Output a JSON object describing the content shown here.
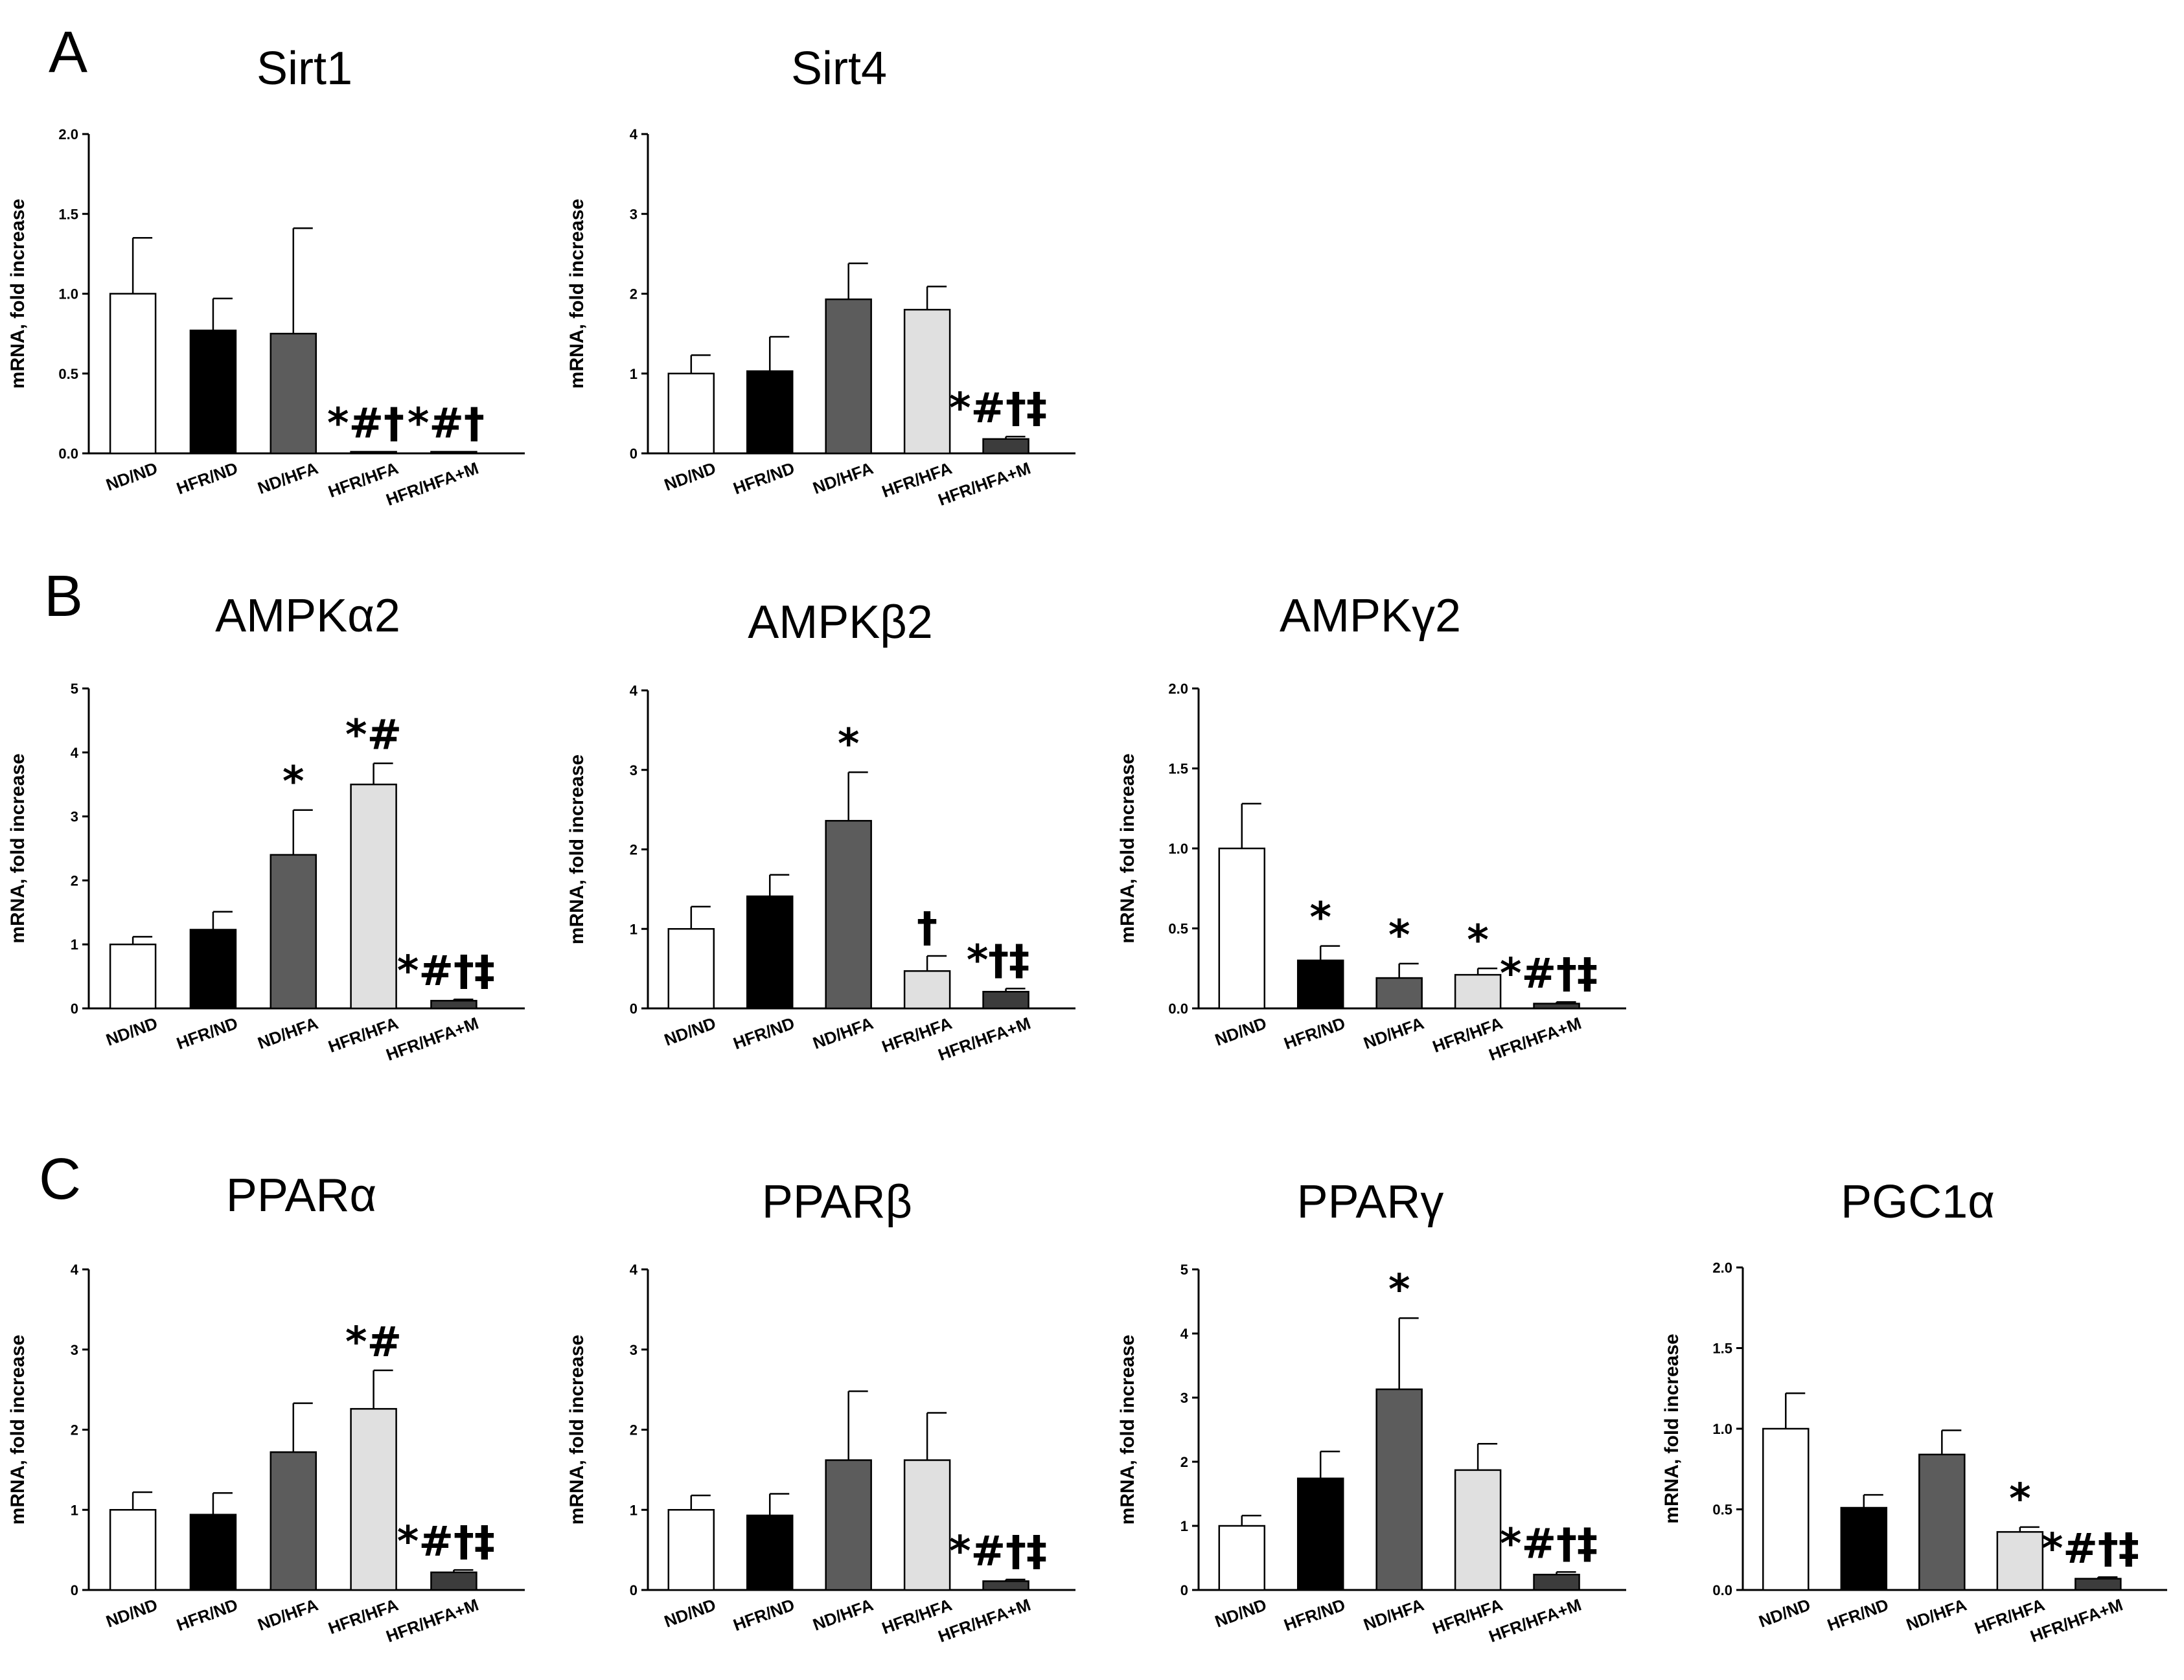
{
  "panel_labels": {
    "a": "A",
    "b": "B",
    "c": "C"
  },
  "colors": {
    "ND/ND": "#ffffff",
    "HFR/ND": "#000000",
    "ND/HFA": "#5c5c5c",
    "HFR/HFA": "#e0e0e0",
    "HFR/HFA+M": "#3c3c3c"
  },
  "chart_data": [
    {
      "id": "sirt1",
      "panel": "A",
      "type": "bar",
      "title": "Sirt1",
      "ylabel": "mRNA, fold increase",
      "categories": [
        "ND/ND",
        "HFR/ND",
        "ND/HFA",
        "HFR/HFA",
        "HFR/HFA+M"
      ],
      "values": [
        1.0,
        0.77,
        0.75,
        0.01,
        0.01
      ],
      "errors": [
        0.35,
        0.2,
        0.66,
        0.0,
        0.0
      ],
      "ylim": [
        0,
        2.0
      ],
      "yticks": [
        "0.0",
        "0.5",
        "1.0",
        "1.5",
        "2.0"
      ],
      "annotations": [
        null,
        null,
        null,
        "*#†",
        "*#†"
      ]
    },
    {
      "id": "sirt4",
      "panel": "A",
      "type": "bar",
      "title": "Sirt4",
      "ylabel": "mRNA, fold increase",
      "categories": [
        "ND/ND",
        "HFR/ND",
        "ND/HFA",
        "HFR/HFA",
        "HFR/HFA+M"
      ],
      "values": [
        1.0,
        1.03,
        1.93,
        1.8,
        0.18
      ],
      "errors": [
        0.23,
        0.43,
        0.45,
        0.29,
        0.03
      ],
      "ylim": [
        0,
        4
      ],
      "yticks": [
        "0",
        "1",
        "2",
        "3",
        "4"
      ],
      "annotations": [
        null,
        null,
        null,
        null,
        "*#†‡"
      ]
    },
    {
      "id": "ampka2",
      "panel": "B",
      "type": "bar",
      "title": "AMPKα2",
      "ylabel": "mRNA, fold increase",
      "categories": [
        "ND/ND",
        "HFR/ND",
        "ND/HFA",
        "HFR/HFA",
        "HFR/HFA+M"
      ],
      "values": [
        1.0,
        1.23,
        2.4,
        3.5,
        0.12
      ],
      "errors": [
        0.12,
        0.28,
        0.7,
        0.33,
        0.02
      ],
      "ylim": [
        0,
        5
      ],
      "yticks": [
        "0",
        "1",
        "2",
        "3",
        "4",
        "5"
      ],
      "annotations": [
        null,
        null,
        "*",
        "*#",
        "*#†‡"
      ]
    },
    {
      "id": "ampkb2",
      "panel": "B",
      "type": "bar",
      "title": "AMPKβ2",
      "ylabel": "mRNA, fold increase",
      "categories": [
        "ND/ND",
        "HFR/ND",
        "ND/HFA",
        "HFR/HFA",
        "HFR/HFA+M"
      ],
      "values": [
        1.0,
        1.41,
        2.36,
        0.47,
        0.21
      ],
      "errors": [
        0.28,
        0.27,
        0.61,
        0.19,
        0.04
      ],
      "ylim": [
        0,
        4
      ],
      "yticks": [
        "0",
        "1",
        "2",
        "3",
        "4"
      ],
      "annotations": [
        null,
        null,
        "*",
        "†",
        "*†‡"
      ]
    },
    {
      "id": "ampkg2",
      "panel": "B",
      "type": "bar",
      "title": "AMPKγ2",
      "ylabel": "mRNA, fold increase",
      "categories": [
        "ND/ND",
        "HFR/ND",
        "ND/HFA",
        "HFR/HFA",
        "HFR/HFA+M"
      ],
      "values": [
        1.0,
        0.3,
        0.19,
        0.21,
        0.03
      ],
      "errors": [
        0.28,
        0.09,
        0.09,
        0.04,
        0.01
      ],
      "ylim": [
        0,
        2.0
      ],
      "yticks": [
        "0.0",
        "0.5",
        "1.0",
        "1.5",
        "2.0"
      ],
      "annotations": [
        null,
        "*",
        "*",
        "*",
        "*#†‡"
      ]
    },
    {
      "id": "ppara",
      "panel": "C",
      "type": "bar",
      "title": "PPARα",
      "ylabel": "mRNA, fold increase",
      "categories": [
        "ND/ND",
        "HFR/ND",
        "ND/HFA",
        "HFR/HFA",
        "HFR/HFA+M"
      ],
      "values": [
        1.0,
        0.94,
        1.72,
        2.26,
        0.22
      ],
      "errors": [
        0.22,
        0.27,
        0.61,
        0.48,
        0.03
      ],
      "ylim": [
        0,
        4
      ],
      "yticks": [
        "0",
        "1",
        "2",
        "3",
        "4"
      ],
      "annotations": [
        null,
        null,
        null,
        "*#",
        "*#†‡"
      ]
    },
    {
      "id": "pparb",
      "panel": "C",
      "type": "bar",
      "title": "PPARβ",
      "ylabel": "mRNA, fold increase",
      "categories": [
        "ND/ND",
        "HFR/ND",
        "ND/HFA",
        "HFR/HFA",
        "HFR/HFA+M"
      ],
      "values": [
        1.0,
        0.93,
        1.62,
        1.62,
        0.11
      ],
      "errors": [
        0.18,
        0.27,
        0.86,
        0.59,
        0.02
      ],
      "ylim": [
        0,
        4
      ],
      "yticks": [
        "0",
        "1",
        "2",
        "3",
        "4"
      ],
      "annotations": [
        null,
        null,
        null,
        null,
        "*#†‡"
      ]
    },
    {
      "id": "pparg",
      "panel": "C",
      "type": "bar",
      "title": "PPARγ",
      "ylabel": "mRNA, fold increase",
      "categories": [
        "ND/ND",
        "HFR/ND",
        "ND/HFA",
        "HFR/HFA",
        "HFR/HFA+M"
      ],
      "values": [
        1.0,
        1.74,
        3.13,
        1.87,
        0.24
      ],
      "errors": [
        0.16,
        0.42,
        1.11,
        0.41,
        0.04
      ],
      "ylim": [
        0,
        5
      ],
      "yticks": [
        "0",
        "1",
        "2",
        "3",
        "4",
        "5"
      ],
      "annotations": [
        null,
        null,
        "*",
        null,
        "*#†‡"
      ]
    },
    {
      "id": "pgc1a",
      "panel": "C",
      "type": "bar",
      "title": "PGC1α",
      "ylabel": "mRNA, fold increase",
      "categories": [
        "ND/ND",
        "HFR/ND",
        "ND/HFA",
        "HFR/HFA",
        "HFR/HFA+M"
      ],
      "values": [
        1.0,
        0.51,
        0.84,
        0.36,
        0.07
      ],
      "errors": [
        0.22,
        0.08,
        0.15,
        0.03,
        0.01
      ],
      "ylim": [
        0,
        2.0
      ],
      "yticks": [
        "0.0",
        "0.5",
        "1.0",
        "1.5",
        "2.0"
      ],
      "annotations": [
        null,
        null,
        null,
        "*",
        "*#†‡"
      ]
    }
  ]
}
